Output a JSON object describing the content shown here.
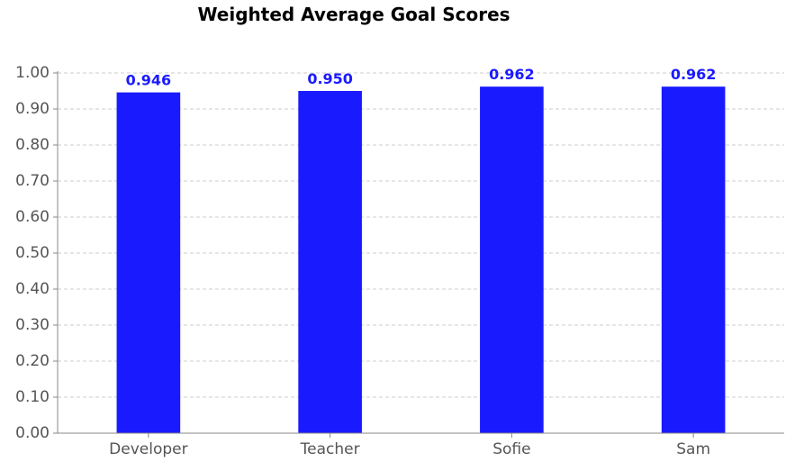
{
  "chart_data": {
    "type": "bar",
    "title": "Weighted Average Goal Scores",
    "xlabel": "",
    "ylabel": "",
    "categories": [
      "Developer",
      "Teacher",
      "Sofie",
      "Sam"
    ],
    "values": [
      0.946,
      0.95,
      0.962,
      0.962
    ],
    "data_labels": [
      "0.946",
      "0.950",
      "0.962",
      "0.962"
    ],
    "ylim": [
      0,
      1.0
    ],
    "yticks": [
      0.0,
      0.1,
      0.2,
      0.3,
      0.4,
      0.5,
      0.6,
      0.7,
      0.8,
      0.9,
      1.0
    ],
    "ytick_labels": [
      "0.00",
      "0.10",
      "0.20",
      "0.30",
      "0.40",
      "0.50",
      "0.60",
      "0.70",
      "0.80",
      "0.90",
      "1.00"
    ],
    "grid": "horizontal-dashed",
    "legend": "none",
    "colors": {
      "bar": "#1a1aff",
      "data_label": "#1a1aff",
      "grid": "#cccccc",
      "axis": "#888888"
    }
  }
}
